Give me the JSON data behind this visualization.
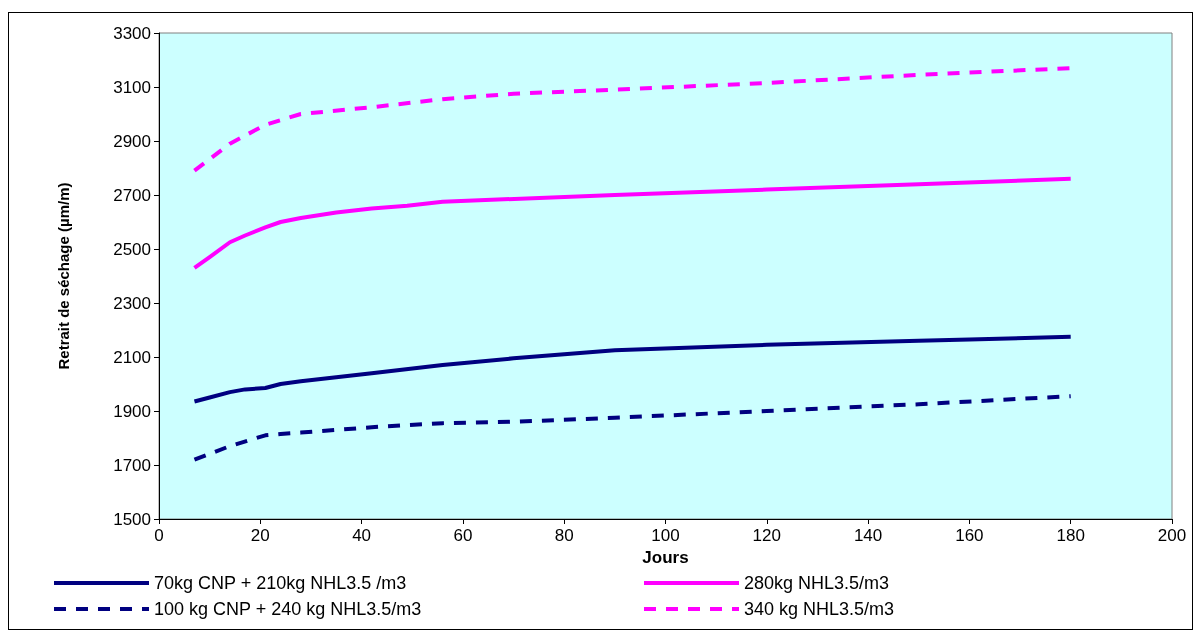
{
  "chart_data": {
    "type": "line",
    "xlabel": "Jours",
    "ylabel": "Retrait de séchage (µm/m)",
    "xlim": [
      0,
      200
    ],
    "xticks": [
      0,
      20,
      40,
      60,
      80,
      100,
      120,
      140,
      160,
      180,
      200
    ],
    "ylim": [
      1500,
      3300
    ],
    "yticks": [
      1500,
      1700,
      1900,
      2100,
      2300,
      2500,
      2700,
      2900,
      3100,
      3300
    ],
    "grid": false,
    "legend": "bottom",
    "marker": "none",
    "series": [
      {
        "name": "70kg CNP + 210kg NHL3.5 /m3",
        "color": "#000080",
        "line_style": "solid",
        "x": [
          7,
          10,
          14,
          17,
          21,
          24,
          28,
          35,
          42,
          56,
          70,
          90,
          120,
          150,
          160,
          180
        ],
        "values": [
          1935,
          1950,
          1970,
          1980,
          1985,
          2000,
          2010,
          2025,
          2040,
          2070,
          2095,
          2125,
          2145,
          2160,
          2165,
          2175
        ]
      },
      {
        "name": "280kg NHL3.5/m3",
        "color": "#ff00ff",
        "line_style": "solid",
        "x": [
          7,
          10,
          14,
          17,
          21,
          24,
          28,
          35,
          42,
          49,
          56,
          90,
          120,
          150,
          180
        ],
        "values": [
          2430,
          2470,
          2525,
          2550,
          2580,
          2600,
          2615,
          2635,
          2650,
          2660,
          2675,
          2700,
          2720,
          2740,
          2760
        ]
      },
      {
        "name": "100 kg CNP + 240 kg NHL3.5/m3",
        "color": "#000080",
        "line_style": "dashed",
        "x": [
          7,
          14,
          21,
          24,
          28,
          42,
          56,
          70,
          90,
          120,
          150,
          180
        ],
        "values": [
          1720,
          1770,
          1810,
          1815,
          1820,
          1840,
          1855,
          1860,
          1875,
          1900,
          1925,
          1955
        ]
      },
      {
        "name": "340 kg NHL3.5/m3",
        "color": "#ff00ff",
        "line_style": "dashed",
        "x": [
          7,
          14,
          21,
          28,
          42,
          56,
          70,
          90,
          120,
          150,
          180
        ],
        "values": [
          2790,
          2890,
          2960,
          3000,
          3025,
          3055,
          3075,
          3090,
          3115,
          3145,
          3170
        ]
      }
    ]
  }
}
